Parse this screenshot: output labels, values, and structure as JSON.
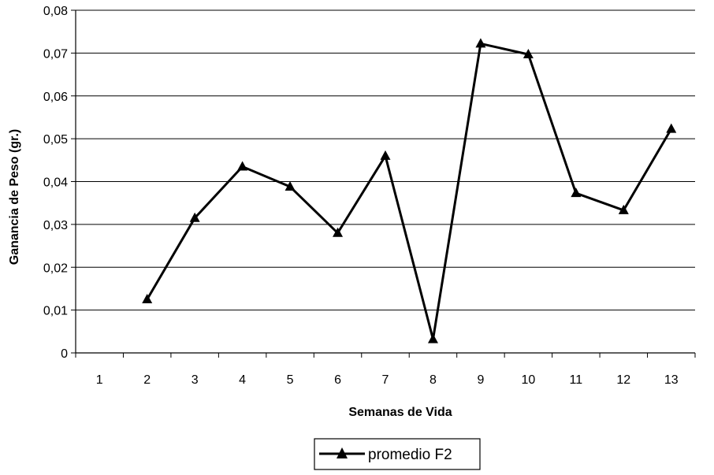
{
  "chart_data": {
    "type": "line",
    "title": "",
    "xlabel": "Semanas de Vida",
    "ylabel": "Ganancia de Peso (gr.)",
    "categories": [
      "1",
      "2",
      "3",
      "4",
      "5",
      "6",
      "7",
      "8",
      "9",
      "10",
      "11",
      "12",
      "13"
    ],
    "ylim": [
      0,
      0.08
    ],
    "yticks": [
      "0",
      "0,01",
      "0,02",
      "0,03",
      "0,04",
      "0,05",
      "0,06",
      "0,07",
      "0,08"
    ],
    "grid": "horizontal",
    "legend_position": "bottom",
    "series": [
      {
        "name": "promedio F2",
        "marker": "triangle",
        "color": "#000000",
        "values": [
          null,
          0.0125,
          0.0315,
          0.0435,
          0.0388,
          0.028,
          0.046,
          0.0032,
          0.0722,
          0.0697,
          0.0373,
          0.0333,
          0.0523
        ]
      }
    ]
  }
}
